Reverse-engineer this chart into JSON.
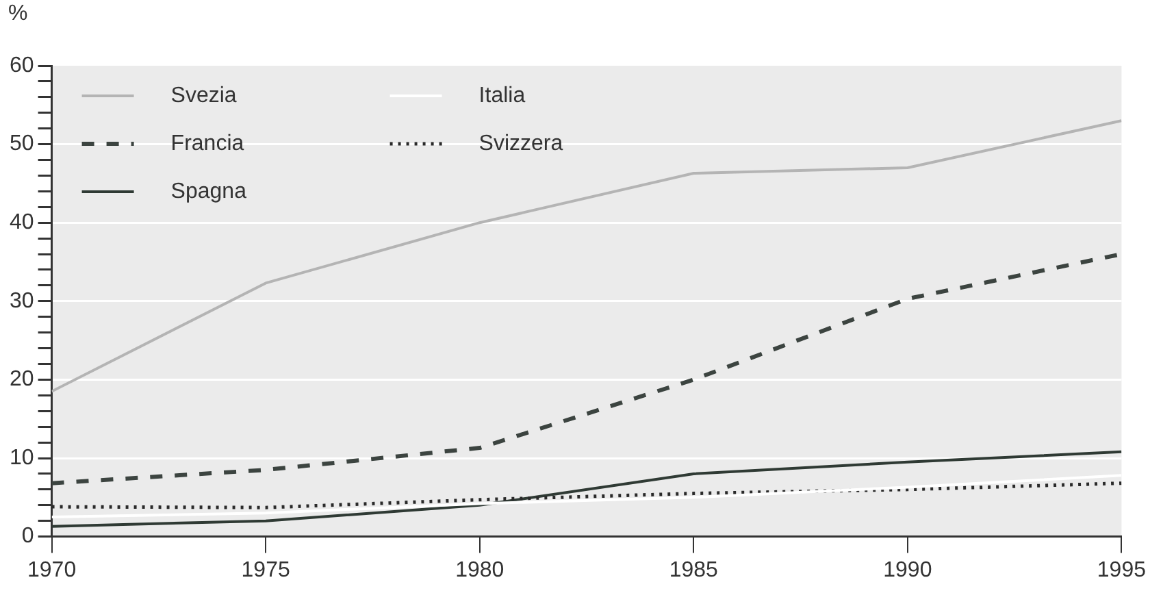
{
  "chart_data": {
    "type": "line",
    "ylabel": "%",
    "x": [
      1970,
      1975,
      1980,
      1985,
      1990,
      1995
    ],
    "xlim": [
      1970,
      1995
    ],
    "xticks": [
      1970,
      1975,
      1980,
      1985,
      1990,
      1995
    ],
    "ylim": [
      0,
      60
    ],
    "yticks": [
      0,
      {
        "value": 2,
        "label": null
      },
      {
        "value": 4,
        "label": null
      },
      {
        "value": 6,
        "label": null
      },
      {
        "value": 8,
        "label": null
      },
      10,
      {
        "value": 12,
        "label": null
      },
      {
        "value": 14,
        "label": null
      },
      {
        "value": 16,
        "label": null
      },
      {
        "value": 18,
        "label": null
      },
      20,
      {
        "value": 22,
        "label": null
      },
      {
        "value": 24,
        "label": null
      },
      {
        "value": 26,
        "label": null
      },
      {
        "value": 28,
        "label": null
      },
      30,
      {
        "value": 32,
        "label": null
      },
      {
        "value": 34,
        "label": null
      },
      {
        "value": 36,
        "label": null
      },
      {
        "value": 38,
        "label": null
      },
      40,
      {
        "value": 42,
        "label": null
      },
      {
        "value": 44,
        "label": null
      },
      {
        "value": 46,
        "label": null
      },
      {
        "value": 48,
        "label": null
      },
      50,
      {
        "value": 52,
        "label": null
      },
      {
        "value": 54,
        "label": null
      },
      {
        "value": 56,
        "label": null
      },
      {
        "value": 58,
        "label": null
      },
      60
    ],
    "grid": "y",
    "legend": "top left",
    "marker": "none",
    "series": [
      {
        "name": "Svezia",
        "color": "#b4b4b4",
        "line_style": "solid",
        "values": [
          18.5,
          32.3,
          40,
          46.3,
          47,
          53
        ]
      },
      {
        "name": "Italia",
        "color": "#ffffff",
        "line_style": "solid",
        "values": [
          2.5,
          3,
          4.2,
          5,
          6.3,
          7.8
        ]
      },
      {
        "name": "Francia",
        "color": "#3c4440",
        "line_style": "dashed",
        "values": [
          6.8,
          8.5,
          11.3,
          20,
          30.3,
          36
        ]
      },
      {
        "name": "Svizzera",
        "color": "#2a2a2a",
        "line_style": "dotted",
        "values": [
          3.8,
          3.7,
          4.7,
          5.5,
          6,
          6.8
        ]
      },
      {
        "name": "Spagna",
        "color": "#2f3a34",
        "line_style": "solid",
        "values": [
          1.3,
          2,
          4,
          8,
          9.5,
          10.8
        ]
      }
    ]
  }
}
